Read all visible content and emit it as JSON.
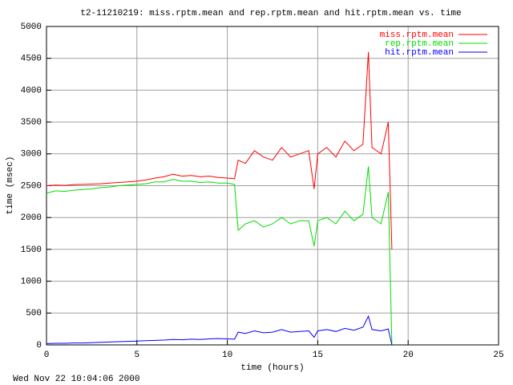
{
  "chart_data": {
    "type": "line",
    "title": "t2-11210219: miss.rptm.mean and rep.rptm.mean and hit.rptm.mean vs. time",
    "x_label": "time (hours)",
    "y_label": "time (msec)",
    "timestamp": "Wed Nov 22 10:04:06 2000",
    "xlim": [
      0,
      25
    ],
    "xticks": [
      0,
      5,
      10,
      15,
      20,
      25
    ],
    "ylim": [
      0,
      5000
    ],
    "yticks": [
      0,
      500,
      1000,
      1500,
      2000,
      2500,
      3000,
      3500,
      4000,
      4500,
      5000
    ],
    "grid": true,
    "legend": "top-right",
    "x": [
      0,
      0.5,
      1,
      1.5,
      2,
      2.5,
      3,
      3.5,
      4,
      4.5,
      5,
      5.5,
      6,
      6.5,
      7,
      7.5,
      8,
      8.5,
      9,
      9.5,
      10,
      10.4,
      10.6,
      11,
      11.5,
      12,
      12.5,
      13,
      13.5,
      14,
      14.5,
      14.8,
      15,
      15.5,
      16,
      16.5,
      17,
      17.5,
      17.8,
      18,
      18.5,
      18.9,
      19.1
    ],
    "series": [
      {
        "name": "miss.rptm.mean",
        "color": "#ff0000",
        "values": [
          2500,
          2510,
          2505,
          2515,
          2520,
          2525,
          2530,
          2540,
          2550,
          2560,
          2570,
          2590,
          2620,
          2640,
          2680,
          2650,
          2660,
          2640,
          2650,
          2630,
          2620,
          2610,
          2900,
          2850,
          3050,
          2950,
          2900,
          3100,
          2950,
          3000,
          3050,
          2450,
          3000,
          3100,
          2950,
          3200,
          3050,
          3150,
          4600,
          3100,
          3000,
          3500,
          1500
        ]
      },
      {
        "name": "rep.rptm.mean",
        "color": "#00dd00",
        "values": [
          2380,
          2420,
          2410,
          2430,
          2440,
          2450,
          2470,
          2480,
          2500,
          2510,
          2520,
          2530,
          2560,
          2560,
          2600,
          2570,
          2570,
          2550,
          2560,
          2540,
          2540,
          2520,
          1800,
          1900,
          1950,
          1850,
          1900,
          2000,
          1900,
          1950,
          1950,
          1550,
          1950,
          2000,
          1900,
          2100,
          1950,
          2050,
          2800,
          2000,
          1900,
          2400,
          0
        ]
      },
      {
        "name": "hit.rptm.mean",
        "color": "#0000ff",
        "values": [
          20,
          25,
          25,
          30,
          30,
          35,
          40,
          45,
          50,
          55,
          60,
          65,
          70,
          75,
          85,
          80,
          90,
          85,
          95,
          100,
          95,
          90,
          200,
          180,
          220,
          190,
          200,
          240,
          200,
          210,
          220,
          120,
          220,
          240,
          210,
          260,
          230,
          280,
          450,
          240,
          220,
          250,
          0
        ]
      }
    ]
  }
}
